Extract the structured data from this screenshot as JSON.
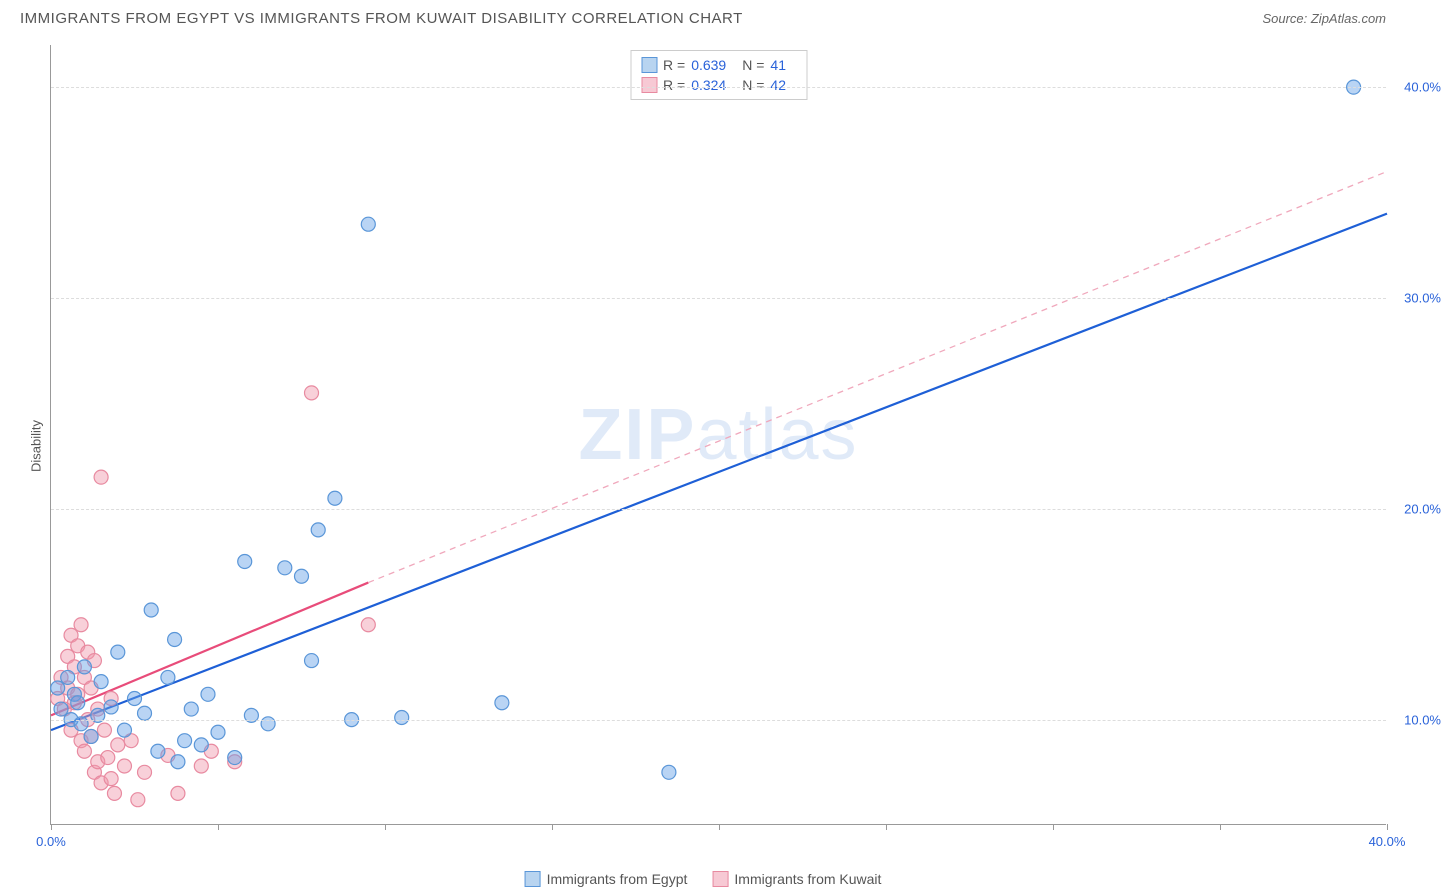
{
  "title": "IMMIGRANTS FROM EGYPT VS IMMIGRANTS FROM KUWAIT DISABILITY CORRELATION CHART",
  "source": "Source: ZipAtlas.com",
  "watermark_bold": "ZIP",
  "watermark_light": "atlas",
  "chart": {
    "type": "scatter",
    "ylabel": "Disability",
    "xlim": [
      0,
      40
    ],
    "ylim": [
      5,
      42
    ],
    "x_ticks": [
      0,
      5,
      10,
      15,
      20,
      25,
      30,
      35,
      40
    ],
    "x_tick_labels": {
      "0": "0.0%",
      "40": "40.0%"
    },
    "y_gridlines": [
      10,
      20,
      30,
      40
    ],
    "y_tick_labels": {
      "10": "10.0%",
      "20": "20.0%",
      "30": "30.0%",
      "40": "40.0%"
    },
    "grid_color": "#dddddd",
    "axis_color": "#999999",
    "background_color": "#ffffff",
    "marker_radius": 7,
    "marker_stroke_width": 1.2,
    "series": [
      {
        "name": "Immigrants from Egypt",
        "color_fill": "rgba(100,160,230,0.45)",
        "color_stroke": "#5a96d8",
        "swatch_fill": "#b8d4f0",
        "swatch_border": "#5a96d8",
        "R": "0.639",
        "N": "41",
        "trendline": {
          "solid": {
            "x1": 0,
            "y1": 9.5,
            "x2": 40,
            "y2": 34.0,
            "color": "#1e5fd6",
            "width": 2.2
          },
          "dashed": null
        },
        "points": [
          [
            0.2,
            11.5
          ],
          [
            0.3,
            10.5
          ],
          [
            0.5,
            12.0
          ],
          [
            0.6,
            10.0
          ],
          [
            0.7,
            11.2
          ],
          [
            0.8,
            10.8
          ],
          [
            0.9,
            9.8
          ],
          [
            1.0,
            12.5
          ],
          [
            1.2,
            9.2
          ],
          [
            1.4,
            10.2
          ],
          [
            1.5,
            11.8
          ],
          [
            1.8,
            10.6
          ],
          [
            2.0,
            13.2
          ],
          [
            2.2,
            9.5
          ],
          [
            2.5,
            11.0
          ],
          [
            2.8,
            10.3
          ],
          [
            3.0,
            15.2
          ],
          [
            3.2,
            8.5
          ],
          [
            3.5,
            12.0
          ],
          [
            3.7,
            13.8
          ],
          [
            3.8,
            8.0
          ],
          [
            4.0,
            9.0
          ],
          [
            4.2,
            10.5
          ],
          [
            4.5,
            8.8
          ],
          [
            4.7,
            11.2
          ],
          [
            5.0,
            9.4
          ],
          [
            5.5,
            8.2
          ],
          [
            5.8,
            17.5
          ],
          [
            6.0,
            10.2
          ],
          [
            6.5,
            9.8
          ],
          [
            7.0,
            17.2
          ],
          [
            7.5,
            16.8
          ],
          [
            7.8,
            12.8
          ],
          [
            8.0,
            19.0
          ],
          [
            8.5,
            20.5
          ],
          [
            9.0,
            10.0
          ],
          [
            9.5,
            33.5
          ],
          [
            10.5,
            10.1
          ],
          [
            13.5,
            10.8
          ],
          [
            18.5,
            7.5
          ],
          [
            39.0,
            40.0
          ]
        ]
      },
      {
        "name": "Immigrants from Kuwait",
        "color_fill": "rgba(240,150,170,0.45)",
        "color_stroke": "#e88aa0",
        "swatch_fill": "#f7c9d4",
        "swatch_border": "#e88aa0",
        "R": "0.324",
        "N": "42",
        "trendline": {
          "solid": {
            "x1": 0,
            "y1": 10.2,
            "x2": 9.5,
            "y2": 16.5,
            "color": "#e84c7a",
            "width": 2.2
          },
          "dashed": {
            "x1": 9.5,
            "y1": 16.5,
            "x2": 40,
            "y2": 36.0,
            "color": "#f0a8bc",
            "width": 1.3
          }
        },
        "points": [
          [
            0.2,
            11.0
          ],
          [
            0.3,
            12.0
          ],
          [
            0.4,
            10.5
          ],
          [
            0.5,
            13.0
          ],
          [
            0.5,
            11.5
          ],
          [
            0.6,
            9.5
          ],
          [
            0.6,
            14.0
          ],
          [
            0.7,
            12.5
          ],
          [
            0.7,
            10.8
          ],
          [
            0.8,
            13.5
          ],
          [
            0.8,
            11.2
          ],
          [
            0.9,
            9.0
          ],
          [
            0.9,
            14.5
          ],
          [
            1.0,
            12.0
          ],
          [
            1.0,
            8.5
          ],
          [
            1.1,
            10.0
          ],
          [
            1.1,
            13.2
          ],
          [
            1.2,
            11.5
          ],
          [
            1.2,
            9.2
          ],
          [
            1.3,
            7.5
          ],
          [
            1.3,
            12.8
          ],
          [
            1.4,
            8.0
          ],
          [
            1.4,
            10.5
          ],
          [
            1.5,
            7.0
          ],
          [
            1.5,
            21.5
          ],
          [
            1.6,
            9.5
          ],
          [
            1.7,
            8.2
          ],
          [
            1.8,
            11.0
          ],
          [
            1.8,
            7.2
          ],
          [
            1.9,
            6.5
          ],
          [
            2.0,
            8.8
          ],
          [
            2.2,
            7.8
          ],
          [
            2.4,
            9.0
          ],
          [
            2.6,
            6.2
          ],
          [
            2.8,
            7.5
          ],
          [
            3.5,
            8.3
          ],
          [
            3.8,
            6.5
          ],
          [
            4.5,
            7.8
          ],
          [
            4.8,
            8.5
          ],
          [
            5.5,
            8.0
          ],
          [
            7.8,
            25.5
          ],
          [
            9.5,
            14.5
          ]
        ]
      }
    ]
  }
}
